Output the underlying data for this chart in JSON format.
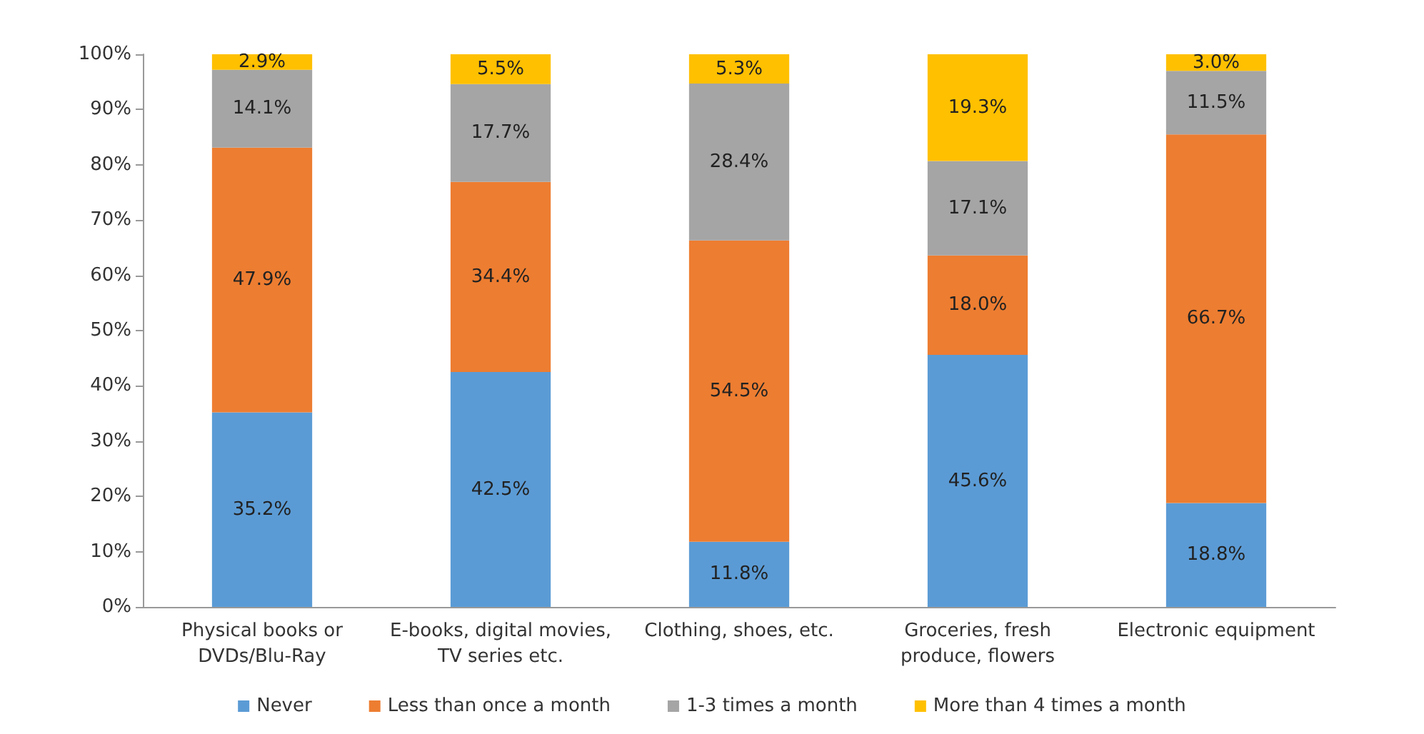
{
  "chart_data": {
    "type": "bar",
    "stacked": true,
    "categories": [
      "Physical books or\nDVDs/Blu-Ray",
      "E-books, digital movies,\nTV series etc.",
      "Clothing, shoes, etc.",
      "Groceries, fresh\nproduce, flowers",
      "Electronic equipment"
    ],
    "series": [
      {
        "name": "Never",
        "color": "#5b9bd5",
        "values": [
          35.2,
          42.5,
          11.8,
          45.6,
          18.8
        ],
        "value_labels": [
          "35.2%",
          "42.5%",
          "11.8%",
          "45.6%",
          "18.8%"
        ]
      },
      {
        "name": "Less than once a month",
        "color": "#ed7d31",
        "values": [
          47.9,
          34.4,
          54.5,
          18.0,
          66.7
        ],
        "value_labels": [
          "47.9%",
          "34.4%",
          "54.5%",
          "18.0%",
          "66.7%"
        ]
      },
      {
        "name": "1-3 times a month",
        "color": "#a5a5a5",
        "values": [
          14.1,
          17.7,
          28.4,
          17.1,
          11.5
        ],
        "value_labels": [
          "14.1%",
          "17.7%",
          "28.4%",
          "17.1%",
          "11.5%"
        ]
      },
      {
        "name": "More than 4 times a month",
        "color": "#ffc000",
        "values": [
          2.9,
          5.5,
          5.3,
          19.3,
          3.0
        ],
        "value_labels": [
          "2.9%",
          "5.5%",
          "5.3%",
          "19.3%",
          "3.0%"
        ]
      }
    ],
    "ylim": [
      0,
      100
    ],
    "yticks": [
      {
        "value": 0,
        "label": "0%"
      },
      {
        "value": 10,
        "label": "10%"
      },
      {
        "value": 20,
        "label": "20%"
      },
      {
        "value": 30,
        "label": "30%"
      },
      {
        "value": 40,
        "label": "40%"
      },
      {
        "value": 50,
        "label": "50%"
      },
      {
        "value": 60,
        "label": "60%"
      },
      {
        "value": 70,
        "label": "70%"
      },
      {
        "value": 80,
        "label": "80%"
      },
      {
        "value": 90,
        "label": "90%"
      },
      {
        "value": 100,
        "label": "100%"
      }
    ],
    "grid": false,
    "legend": "bottom"
  }
}
